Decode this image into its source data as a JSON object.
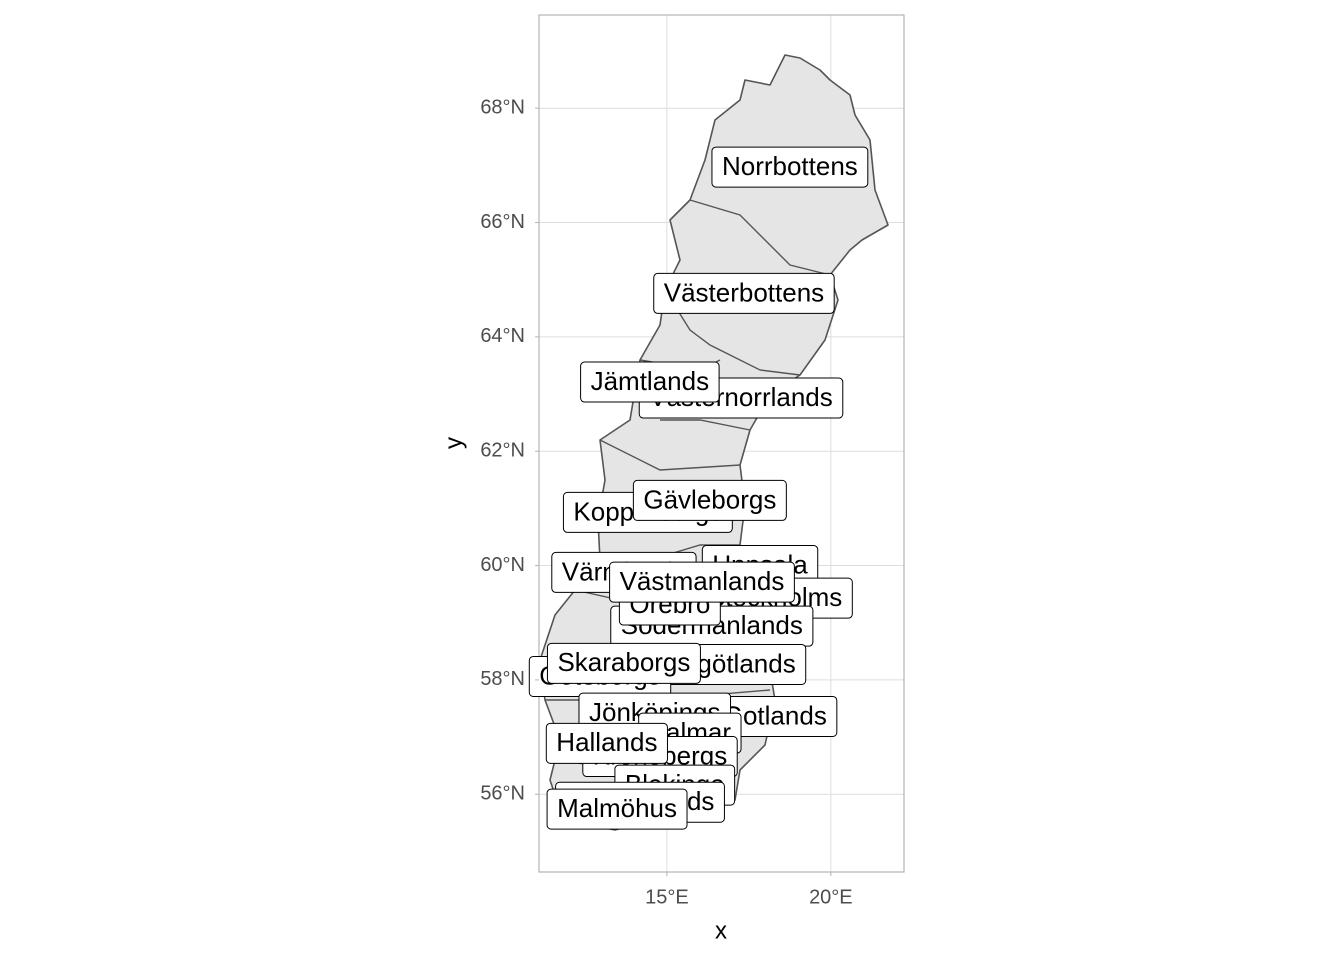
{
  "chart_data": {
    "type": "map",
    "x_label": "x",
    "y_label": "y",
    "xlim": [
      11.1,
      22.23
    ],
    "ylim": [
      54.64,
      69.63
    ],
    "xticks": [
      {
        "value": 15,
        "label": "15°E"
      },
      {
        "value": 20,
        "label": "20°E"
      }
    ],
    "yticks": [
      {
        "value": 56,
        "label": "56°N"
      },
      {
        "value": 58,
        "label": "58°N"
      },
      {
        "value": 60,
        "label": "60°N"
      },
      {
        "value": 62,
        "label": "62°N"
      },
      {
        "value": 64,
        "label": "64°N"
      },
      {
        "value": 66,
        "label": "66°N"
      },
      {
        "value": 68,
        "label": "68°N"
      }
    ],
    "grid": true,
    "labels": [
      {
        "name": "Norrbottens",
        "lon": 18.75,
        "lat": 66.97
      },
      {
        "name": "Västerbottens",
        "lon": 17.35,
        "lat": 64.76
      },
      {
        "name": "Västernorrlands",
        "lon": 17.26,
        "lat": 62.93
      },
      {
        "name": "Jämtlands",
        "lon": 14.48,
        "lat": 63.21
      },
      {
        "name": "Kopparbergs",
        "lon": 14.42,
        "lat": 60.93
      },
      {
        "name": "Gävleborgs",
        "lon": 16.31,
        "lat": 61.14
      },
      {
        "name": "Uppsala",
        "lon": 17.84,
        "lat": 60.0
      },
      {
        "name": "Stockholms",
        "lon": 18.3,
        "lat": 59.43
      },
      {
        "name": "Värmlands",
        "lon": 13.69,
        "lat": 59.88
      },
      {
        "name": "Södermanlands",
        "lon": 16.37,
        "lat": 58.94
      },
      {
        "name": "Örebro",
        "lon": 15.09,
        "lat": 59.31
      },
      {
        "name": "Västmanlands",
        "lon": 16.07,
        "lat": 59.71
      },
      {
        "name": "Östergötlands",
        "lon": 16.46,
        "lat": 58.27
      },
      {
        "name": "Göteborgs",
        "lon": 12.96,
        "lat": 58.06
      },
      {
        "name": "Skaraborgs",
        "lon": 13.69,
        "lat": 58.29
      },
      {
        "name": "Gotlands",
        "lon": 18.29,
        "lat": 57.36
      },
      {
        "name": "Jönköpings",
        "lon": 14.63,
        "lat": 57.42
      },
      {
        "name": "Kalmar",
        "lon": 15.7,
        "lat": 57.07
      },
      {
        "name": "Kronobergs",
        "lon": 14.79,
        "lat": 56.66
      },
      {
        "name": "Hallands",
        "lon": 13.17,
        "lat": 56.89
      },
      {
        "name": "Blekinge",
        "lon": 15.24,
        "lat": 56.16
      },
      {
        "name": "Kristianstads",
        "lon": 14.18,
        "lat": 55.86
      },
      {
        "name": "Malmöhus",
        "lon": 13.48,
        "lat": 55.74
      }
    ]
  }
}
